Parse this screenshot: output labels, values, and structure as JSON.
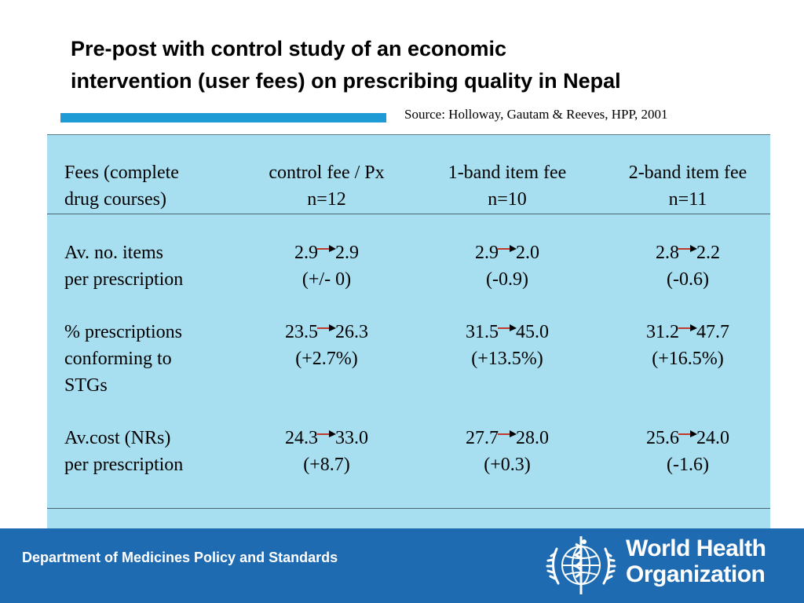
{
  "title": {
    "line1": "Pre-post with control study of an economic",
    "line2": "intervention (user fees) on prescribing quality in Nepal"
  },
  "source": "Source: Holloway, Gautam & Reeves, HPP, 2001",
  "colors": {
    "panel": "#a8dff0",
    "accent_bar": "#1e9ad4",
    "footer": "#1f6bb1"
  },
  "table": {
    "header": {
      "label_line1": "Fees (complete",
      "label_line2": "drug courses)",
      "columns": [
        {
          "name": "control fee / Px",
          "n": "n=12"
        },
        {
          "name": "1-band item fee",
          "n": "n=10"
        },
        {
          "name": "2-band item fee",
          "n": "n=11"
        }
      ]
    },
    "rows": [
      {
        "label_lines": [
          "Av. no. items",
          "per prescription"
        ],
        "cells": [
          {
            "pre": "2.9",
            "post": "2.9",
            "change": "(+/- 0)"
          },
          {
            "pre": "2.9",
            "post": "2.0",
            "change": "(-0.9)"
          },
          {
            "pre": "2.8",
            "post": "2.2",
            "change": "(-0.6)"
          }
        ]
      },
      {
        "label_lines": [
          "% prescriptions",
          "conforming to",
          "STGs"
        ],
        "cells": [
          {
            "pre": "23.5",
            "post": "26.3",
            "change": "(+2.7%)"
          },
          {
            "pre": "31.5",
            "post": "45.0",
            "change": "(+13.5%)"
          },
          {
            "pre": "31.2",
            "post": "47.7",
            "change": "(+16.5%)"
          }
        ]
      },
      {
        "label_lines": [
          "Av.cost (NRs)",
          "per prescription"
        ],
        "cells": [
          {
            "pre": "24.3",
            "post": "33.0",
            "change": "(+8.7)"
          },
          {
            "pre": "27.7",
            "post": "28.0",
            "change": "(+0.3)"
          },
          {
            "pre": "25.6",
            "post": "24.0",
            "change": "(-1.6)"
          }
        ]
      }
    ]
  },
  "footer": {
    "department": "Department of Medicines Policy and Standards",
    "logo_line1": "World Health",
    "logo_line2": "Organization",
    "emblem_icon": "who-emblem-icon"
  }
}
